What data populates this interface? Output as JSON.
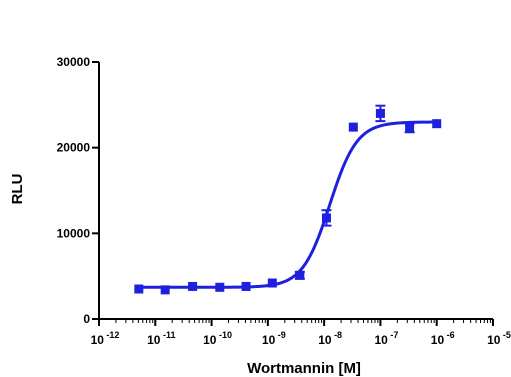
{
  "chart_data": {
    "type": "scatter",
    "xlabel": "Wortmannin [M]",
    "ylabel": "RLU",
    "x_scale": "log",
    "xlim": [
      1e-12,
      1e-05
    ],
    "ylim": [
      0,
      30000
    ],
    "y_ticks": [
      0,
      10000,
      20000,
      30000
    ],
    "y_tick_labels": [
      "0",
      "10000",
      "20000",
      "30000"
    ],
    "x_tick_labels": [
      {
        "base": "10",
        "exp": "-12"
      },
      {
        "base": "10",
        "exp": "-11"
      },
      {
        "base": "10",
        "exp": "-10"
      },
      {
        "base": "10",
        "exp": "-9"
      },
      {
        "base": "10",
        "exp": "-8"
      },
      {
        "base": "10",
        "exp": "-7"
      },
      {
        "base": "10",
        "exp": "-6"
      },
      {
        "base": "10",
        "exp": "-5"
      }
    ],
    "color": "#1f1fe0",
    "points": [
      {
        "x": 5.1e-12,
        "y": 3500
      },
      {
        "x": 1.5e-11,
        "y": 3400
      },
      {
        "x": 4.6e-11,
        "y": 3800
      },
      {
        "x": 1.4e-10,
        "y": 3700
      },
      {
        "x": 4.1e-10,
        "y": 3800
      },
      {
        "x": 1.2e-09,
        "y": 4200
      },
      {
        "x": 3.7e-09,
        "y": 5100,
        "err": 400
      },
      {
        "x": 1.1e-08,
        "y": 11800,
        "err": 900
      },
      {
        "x": 3.3e-08,
        "y": 22400
      },
      {
        "x": 1e-07,
        "y": 24000,
        "err": 900
      },
      {
        "x": 3.3e-07,
        "y": 22300,
        "err": 500
      },
      {
        "x": 1e-06,
        "y": 22800
      }
    ],
    "fit": {
      "bottom": 3700,
      "top": 23000,
      "logEC50": -7.9,
      "hill": 1.8
    }
  }
}
